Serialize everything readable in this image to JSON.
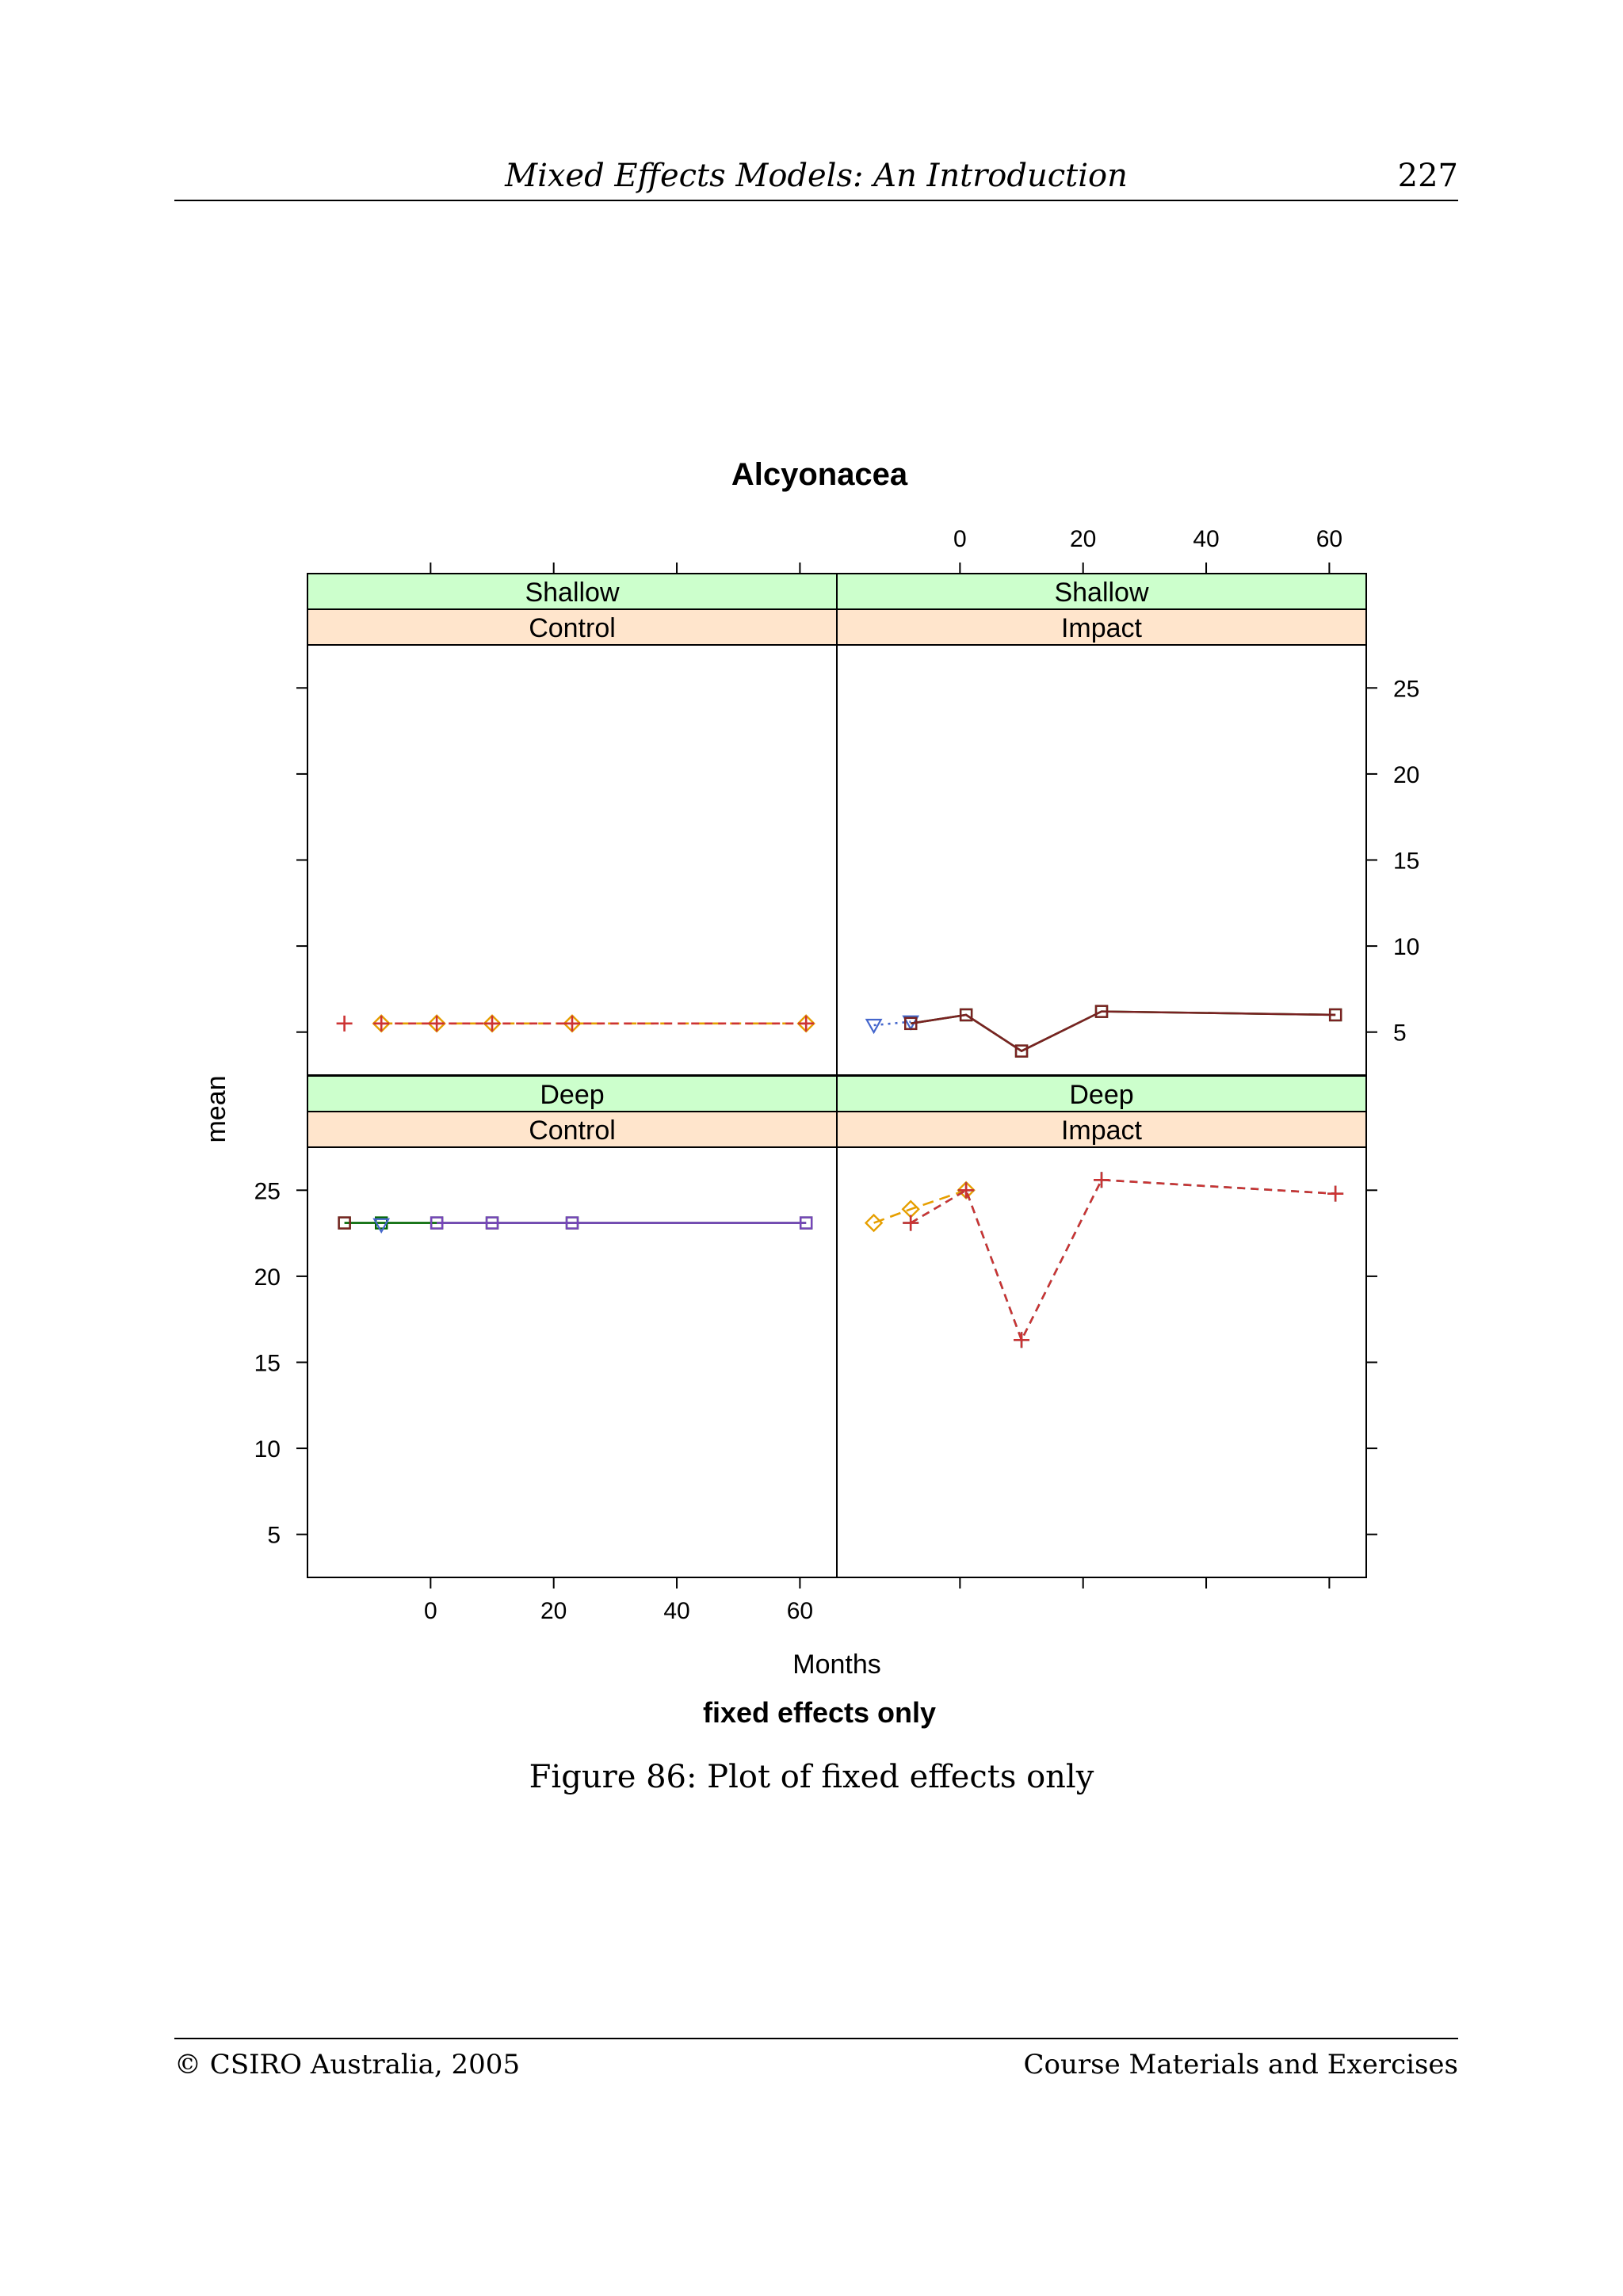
{
  "header": {
    "title": "Mixed Effects Models: An Introduction",
    "page_number": "227"
  },
  "caption": "Figure 86: Plot of fixed effects only",
  "footer": {
    "left": "© CSIRO Australia, 2005",
    "right": "Course Materials and Exercises"
  },
  "chart_data": {
    "type": "line",
    "title": "Alcyonacea",
    "xlabel": "Months",
    "ylabel": "mean",
    "subtitle": "fixed effects only",
    "xlim": [
      -20,
      66
    ],
    "ylim": [
      2.5,
      27.5
    ],
    "xticks": [
      "0",
      "20",
      "40",
      "60"
    ],
    "yticks": [
      "5",
      "10",
      "15",
      "20",
      "25"
    ],
    "xtick_values": [
      0,
      20,
      40,
      60
    ],
    "ytick_values": [
      5,
      10,
      15,
      20,
      25
    ],
    "strip_colors": {
      "outer": "#ccffcc",
      "inner": "#ffe5cc"
    },
    "series_styles": [
      {
        "color": "#cc3333",
        "marker": "plus",
        "dash": "10,7"
      },
      {
        "color": "#e69f00",
        "marker": "diamond",
        "dash": "14,8"
      },
      {
        "color": "#4466cc",
        "marker": "triangle",
        "dash": "3,6"
      },
      {
        "color": "#006600",
        "marker": "square",
        "dash": ""
      },
      {
        "color": "#7a2222",
        "marker": "square",
        "dash": ""
      },
      {
        "color": "#7744bb",
        "marker": "square",
        "dash": ""
      },
      {
        "color": "#00a0a0",
        "marker": "plus",
        "dash": "10,7"
      }
    ],
    "panels": [
      {
        "outer": "Shallow",
        "inner": "Control",
        "row": 0,
        "col": 0,
        "series": [
          {
            "style": 0,
            "x": [
              -14
            ],
            "y": [
              5.5
            ]
          },
          {
            "style": 1,
            "x": [
              -8,
              1,
              10,
              23,
              61
            ],
            "y": [
              5.5,
              5.5,
              5.5,
              5.5,
              5.5
            ]
          },
          {
            "style": 0,
            "x": [
              -8,
              1,
              10,
              23,
              61
            ],
            "y": [
              5.5,
              5.5,
              5.5,
              5.5,
              5.5
            ]
          }
        ]
      },
      {
        "outer": "Shallow",
        "inner": "Impact",
        "row": 0,
        "col": 1,
        "series": [
          {
            "style": 2,
            "x": [
              -14,
              -8
            ],
            "y": [
              5.4,
              5.6
            ]
          },
          {
            "style": 3,
            "x": [
              -8,
              1,
              10,
              23,
              61
            ],
            "y": [
              5.5,
              6.0,
              3.9,
              6.2,
              6.0
            ]
          },
          {
            "style": 4,
            "x": [
              -8,
              1,
              10,
              23,
              61
            ],
            "y": [
              5.5,
              6.0,
              3.9,
              6.2,
              6.0
            ]
          }
        ]
      },
      {
        "outer": "Deep",
        "inner": "Control",
        "row": 1,
        "col": 0,
        "series": [
          {
            "style": 3,
            "x": [
              -14,
              -8,
              1,
              10,
              23,
              61
            ],
            "y": [
              23.1,
              23.1,
              23.1,
              23.1,
              23.1,
              23.1
            ]
          },
          {
            "style": 4,
            "x": [
              -14
            ],
            "y": [
              23.1
            ]
          },
          {
            "style": 2,
            "x": [
              -8
            ],
            "y": [
              23.0
            ]
          },
          {
            "style": 5,
            "x": [
              1,
              10,
              23,
              61
            ],
            "y": [
              23.1,
              23.1,
              23.1,
              23.1
            ]
          }
        ]
      },
      {
        "outer": "Deep",
        "inner": "Impact",
        "row": 1,
        "col": 1,
        "series": [
          {
            "style": 1,
            "x": [
              -14,
              -8,
              1
            ],
            "y": [
              23.1,
              23.9,
              25.0
            ]
          },
          {
            "style": 6,
            "x": [
              -8,
              1,
              10,
              23,
              61
            ],
            "y": [
              23.1,
              25.0,
              16.3,
              25.6,
              24.8
            ]
          },
          {
            "style": 0,
            "x": [
              -8,
              1,
              10,
              23,
              61
            ],
            "y": [
              23.1,
              25.0,
              16.3,
              25.6,
              24.8
            ]
          }
        ]
      }
    ]
  }
}
